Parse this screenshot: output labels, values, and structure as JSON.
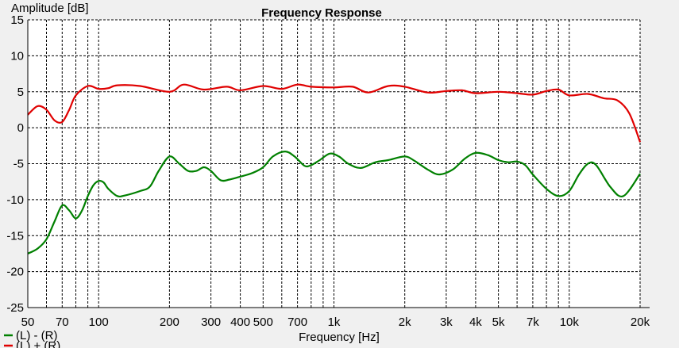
{
  "chart_data": {
    "type": "line",
    "title": "Frequency Response",
    "xlabel": "Frequency [Hz]",
    "ylabel": "Amplitude [dB]",
    "x_scale": "log",
    "xlim": [
      50,
      20000
    ],
    "ylim": [
      -25,
      15
    ],
    "grid": true,
    "legend_position": "bottom-left",
    "x_tick_values": [
      50,
      70,
      100,
      200,
      300,
      400,
      500,
      700,
      1000,
      2000,
      3000,
      4000,
      5000,
      7000,
      10000,
      20000
    ],
    "x_tick_labels": [
      "50",
      "70",
      "100",
      "200",
      "300",
      "400",
      "500",
      "700",
      "1k",
      "2k",
      "3k",
      "4k",
      "5k",
      "7k",
      "10k",
      "20k"
    ],
    "y_ticks": [
      15,
      10,
      5,
      0,
      -5,
      -10,
      -15,
      -20,
      -25
    ],
    "y_tick_labels": [
      "15",
      "10",
      "5",
      "0",
      "-5",
      "-10",
      "-15",
      "-20",
      "-25"
    ],
    "series": [
      {
        "name": "(L) - (R)",
        "color": "#008000",
        "points": [
          [
            50,
            -17.5
          ],
          [
            55,
            -16.8
          ],
          [
            60,
            -15.5
          ],
          [
            65,
            -13.0
          ],
          [
            70,
            -10.8
          ],
          [
            75,
            -11.5
          ],
          [
            80,
            -12.6
          ],
          [
            85,
            -11.5
          ],
          [
            90,
            -9.5
          ],
          [
            95,
            -8.0
          ],
          [
            100,
            -7.4
          ],
          [
            105,
            -7.6
          ],
          [
            110,
            -8.5
          ],
          [
            120,
            -9.5
          ],
          [
            130,
            -9.4
          ],
          [
            150,
            -8.8
          ],
          [
            165,
            -8.2
          ],
          [
            180,
            -6.0
          ],
          [
            200,
            -4.0
          ],
          [
            220,
            -5.0
          ],
          [
            240,
            -6.0
          ],
          [
            260,
            -6.0
          ],
          [
            280,
            -5.5
          ],
          [
            300,
            -6.0
          ],
          [
            330,
            -7.3
          ],
          [
            360,
            -7.2
          ],
          [
            400,
            -6.8
          ],
          [
            450,
            -6.3
          ],
          [
            500,
            -5.5
          ],
          [
            550,
            -4.0
          ],
          [
            620,
            -3.3
          ],
          [
            680,
            -4.0
          ],
          [
            750,
            -5.3
          ],
          [
            800,
            -5.2
          ],
          [
            870,
            -4.5
          ],
          [
            960,
            -3.6
          ],
          [
            1050,
            -4.0
          ],
          [
            1150,
            -5.0
          ],
          [
            1300,
            -5.6
          ],
          [
            1500,
            -4.8
          ],
          [
            1700,
            -4.5
          ],
          [
            2000,
            -4.0
          ],
          [
            2200,
            -4.6
          ],
          [
            2500,
            -5.8
          ],
          [
            2800,
            -6.5
          ],
          [
            3200,
            -5.8
          ],
          [
            3600,
            -4.3
          ],
          [
            4000,
            -3.5
          ],
          [
            4500,
            -3.8
          ],
          [
            5000,
            -4.5
          ],
          [
            5500,
            -4.8
          ],
          [
            6000,
            -4.7
          ],
          [
            6500,
            -5.2
          ],
          [
            7000,
            -6.5
          ],
          [
            8000,
            -8.5
          ],
          [
            9000,
            -9.5
          ],
          [
            10000,
            -8.8
          ],
          [
            11000,
            -6.5
          ],
          [
            12000,
            -5.0
          ],
          [
            13000,
            -5.2
          ],
          [
            15000,
            -8.3
          ],
          [
            17000,
            -9.5
          ],
          [
            20000,
            -6.4
          ]
        ]
      },
      {
        "name": "(L) + (R)",
        "color": "#e00000",
        "points": [
          [
            50,
            1.8
          ],
          [
            55,
            3.0
          ],
          [
            60,
            2.5
          ],
          [
            65,
            1.0
          ],
          [
            70,
            0.8
          ],
          [
            75,
            2.5
          ],
          [
            80,
            4.5
          ],
          [
            90,
            5.8
          ],
          [
            100,
            5.4
          ],
          [
            110,
            5.5
          ],
          [
            120,
            5.9
          ],
          [
            150,
            5.8
          ],
          [
            200,
            5.0
          ],
          [
            230,
            6.0
          ],
          [
            280,
            5.3
          ],
          [
            350,
            5.7
          ],
          [
            400,
            5.2
          ],
          [
            500,
            5.8
          ],
          [
            600,
            5.4
          ],
          [
            700,
            6.0
          ],
          [
            800,
            5.7
          ],
          [
            1000,
            5.6
          ],
          [
            1200,
            5.7
          ],
          [
            1400,
            4.9
          ],
          [
            1700,
            5.8
          ],
          [
            2000,
            5.7
          ],
          [
            2500,
            4.9
          ],
          [
            3000,
            5.1
          ],
          [
            3500,
            5.2
          ],
          [
            4000,
            4.8
          ],
          [
            5000,
            5.0
          ],
          [
            6000,
            4.8
          ],
          [
            7000,
            4.6
          ],
          [
            8000,
            5.1
          ],
          [
            9000,
            5.3
          ],
          [
            10000,
            4.5
          ],
          [
            12000,
            4.7
          ],
          [
            14000,
            4.1
          ],
          [
            16000,
            3.8
          ],
          [
            18000,
            2.0
          ],
          [
            20000,
            -2.0
          ]
        ]
      }
    ]
  }
}
